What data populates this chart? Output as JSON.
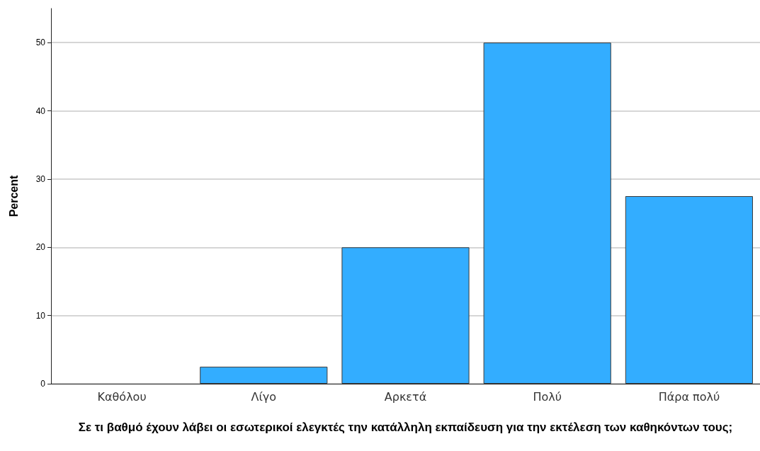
{
  "chart_data": {
    "type": "bar",
    "xlabel": "Σε τι βαθμό έχουν λάβει οι εσωτερικοί ελεγκτές την κατάλληλη εκπαίδευση για την εκτέλεση των καθηκόντων τους;",
    "ylabel": "Percent",
    "categories": [
      "Καθόλου",
      "Λίγο",
      "Αρκετά",
      "Πολύ",
      "Πάρα πολύ"
    ],
    "values": [
      0,
      2.5,
      20,
      50,
      27.5
    ],
    "color": "#33adff",
    "ylim": [
      0,
      55
    ],
    "yticks": [
      0,
      10,
      20,
      30,
      40,
      50
    ],
    "grid": "y"
  }
}
